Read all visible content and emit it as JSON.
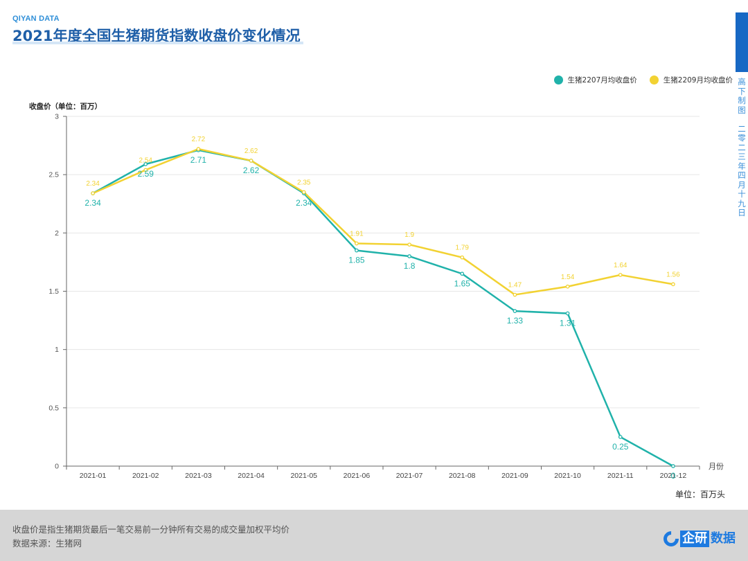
{
  "header": {
    "brand": "QIYAN DATA",
    "title": "2021年度全国生猪期货指数收盘价变化情况"
  },
  "side_caption": [
    "高",
    "下",
    "制",
    "图",
    "",
    "二",
    "零",
    "二",
    "三",
    "年",
    "四",
    "月",
    "十",
    "九",
    "日"
  ],
  "footer": {
    "note": "收盘价是指生猪期货最后一笔交易前一分钟所有交易的成交量加权平均价",
    "source": "数据来源：生猪网",
    "logo_main": "企研",
    "logo_suffix": "数据"
  },
  "colors": {
    "series1": "#20b2aa",
    "series2": "#f2d232",
    "title": "#1f5fa8",
    "brand": "#1768c4"
  },
  "chart_data": {
    "type": "line",
    "title": "2021年度全国生猪期货指数收盘价变化情况",
    "ylabel": "收盘价（单位：百万）",
    "xlabel": "月份",
    "unit_note": "单位：百万头",
    "ylim": [
      0,
      3
    ],
    "yticks": [
      "0",
      "0.5",
      "1",
      "1.5",
      "2",
      "2.5",
      "3"
    ],
    "grid": true,
    "legend_position": "top-right",
    "categories": [
      "2021-01",
      "2021-02",
      "2021-03",
      "2021-04",
      "2021-05",
      "2021-06",
      "2021-07",
      "2021-08",
      "2021-09",
      "2021-10",
      "2021-11",
      "2021-12"
    ],
    "series": [
      {
        "name": "生猪2207月均收盘价",
        "values": [
          2.34,
          2.59,
          2.71,
          2.62,
          2.34,
          1.85,
          1.8,
          1.65,
          1.33,
          1.31,
          0.25,
          0
        ],
        "labels": [
          "2.34",
          "2.59",
          "2.71",
          "2.62",
          "2.34",
          "1.85",
          "1.8",
          "1.65",
          "1.33",
          "1.31",
          "0.25",
          "0"
        ]
      },
      {
        "name": "生猪2209月均收盘价",
        "values": [
          2.34,
          2.54,
          2.72,
          2.62,
          2.35,
          1.91,
          1.9,
          1.79,
          1.47,
          1.54,
          1.64,
          1.56
        ],
        "labels": [
          "2.34",
          "2.54",
          "2.72",
          "2.62",
          "2.35",
          "1.91",
          "1.9",
          "1.79",
          "1.47",
          "1.54",
          "1.64",
          "1.56"
        ]
      }
    ]
  }
}
